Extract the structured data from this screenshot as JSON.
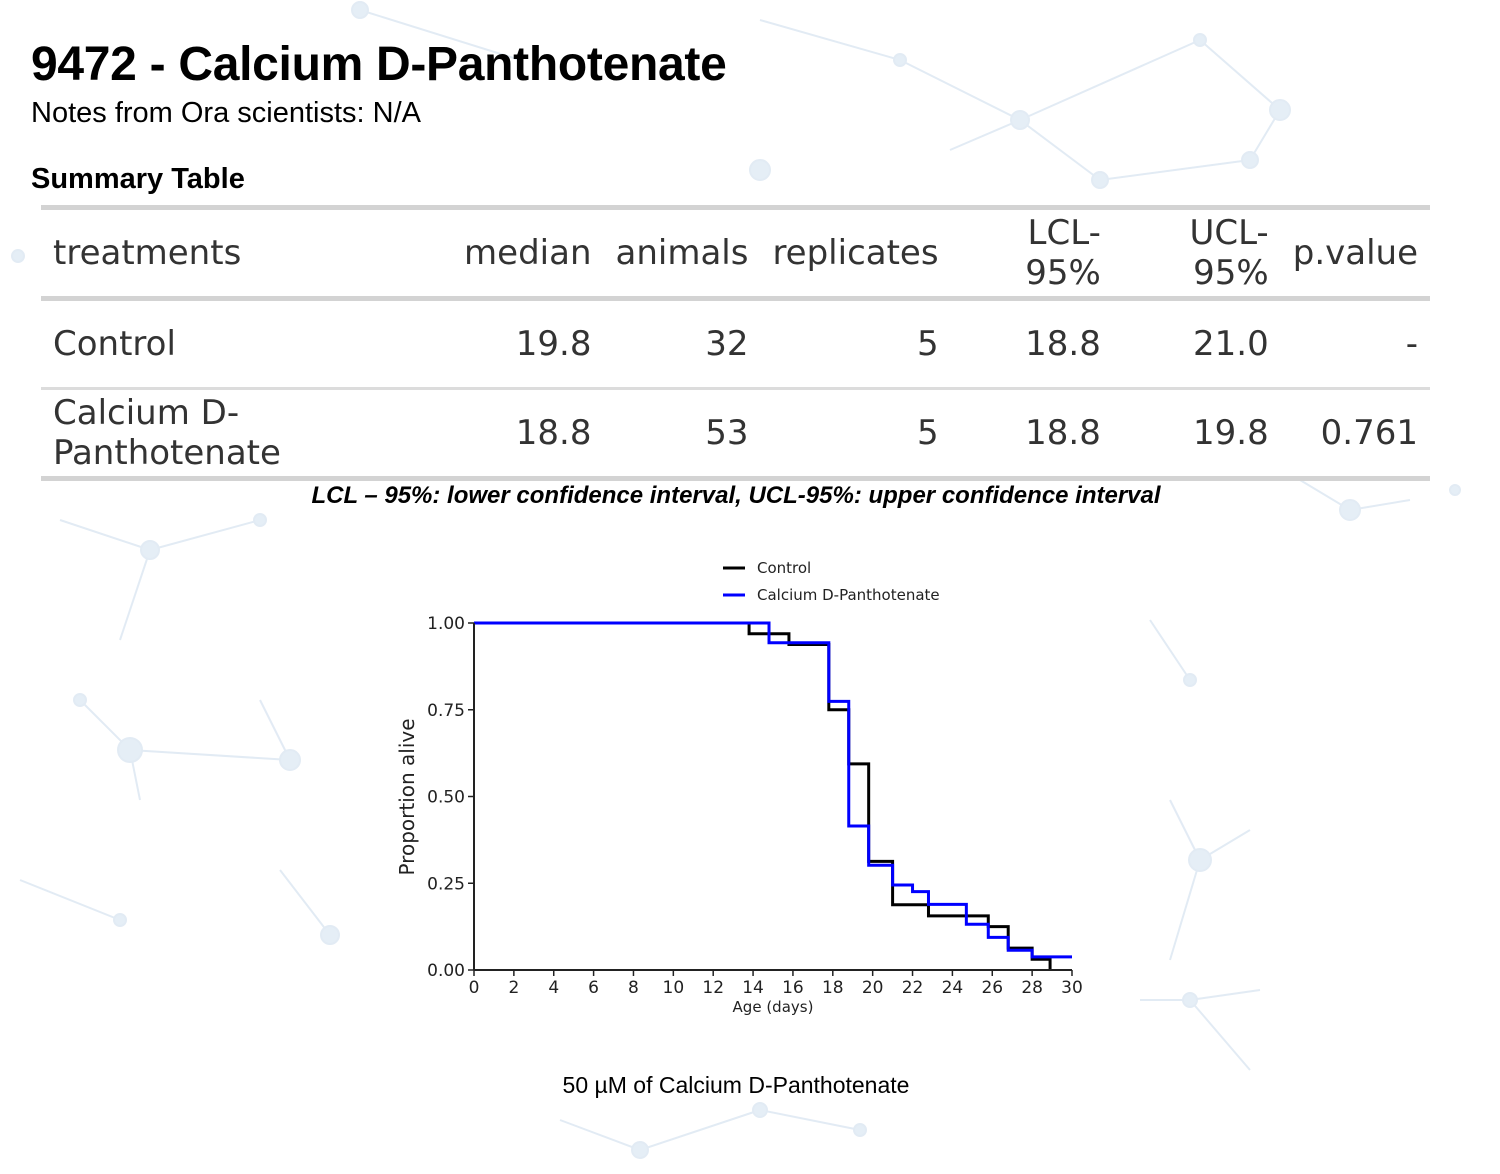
{
  "header": {
    "title": "9472 - Calcium D-Panthotenate",
    "notes": "Notes from Ora scientists: N/A",
    "section_title": "Summary Table"
  },
  "table": {
    "columns": [
      "treatments",
      "median",
      "animals",
      "replicates",
      "LCL-95%",
      "UCL-95%",
      "p.value"
    ],
    "rows": [
      [
        "Control",
        "19.8",
        "32",
        "5",
        "18.8",
        "21.0",
        "-"
      ],
      [
        "Calcium D-Panthotenate",
        "18.8",
        "53",
        "5",
        "18.8",
        "19.8",
        "0.761"
      ]
    ],
    "caption": "LCL – 95%: lower confidence interval, UCL-95%: upper confidence interval"
  },
  "footer": {
    "text": "50 µM of Calcium D-Panthotenate"
  },
  "chart_data": {
    "type": "line",
    "step": true,
    "title": "",
    "xlabel": "Age (days)",
    "ylabel": "Proportion alive",
    "xlim": [
      0,
      30
    ],
    "ylim": [
      0,
      1
    ],
    "xticks": [
      "0",
      "2",
      "4",
      "6",
      "8",
      "10",
      "12",
      "14",
      "16",
      "18",
      "20",
      "22",
      "24",
      "26",
      "28",
      "30"
    ],
    "yticks": [
      "0.00",
      "0.25",
      "0.50",
      "0.75",
      "1.00"
    ],
    "grid": false,
    "legend_position": "top",
    "series": [
      {
        "name": "Control",
        "color": "#000000",
        "x": [
          0,
          13.8,
          15.8,
          17.8,
          18.8,
          19.8,
          21.0,
          22.8,
          25.8,
          26.8,
          28.0,
          28.9
        ],
        "y": [
          1.0,
          0.969,
          0.938,
          0.75,
          0.594,
          0.313,
          0.188,
          0.156,
          0.125,
          0.063,
          0.031,
          0.0
        ]
      },
      {
        "name": "Calcium D-Panthotenate",
        "color": "#0000ff",
        "x": [
          0,
          14.8,
          17.8,
          18.8,
          19.8,
          21.0,
          22.0,
          22.8,
          24.7,
          25.8,
          26.8,
          28.0,
          30.0
        ],
        "y": [
          1.0,
          0.943,
          0.774,
          0.415,
          0.302,
          0.245,
          0.226,
          0.189,
          0.132,
          0.094,
          0.057,
          0.038,
          0.038
        ]
      }
    ]
  }
}
